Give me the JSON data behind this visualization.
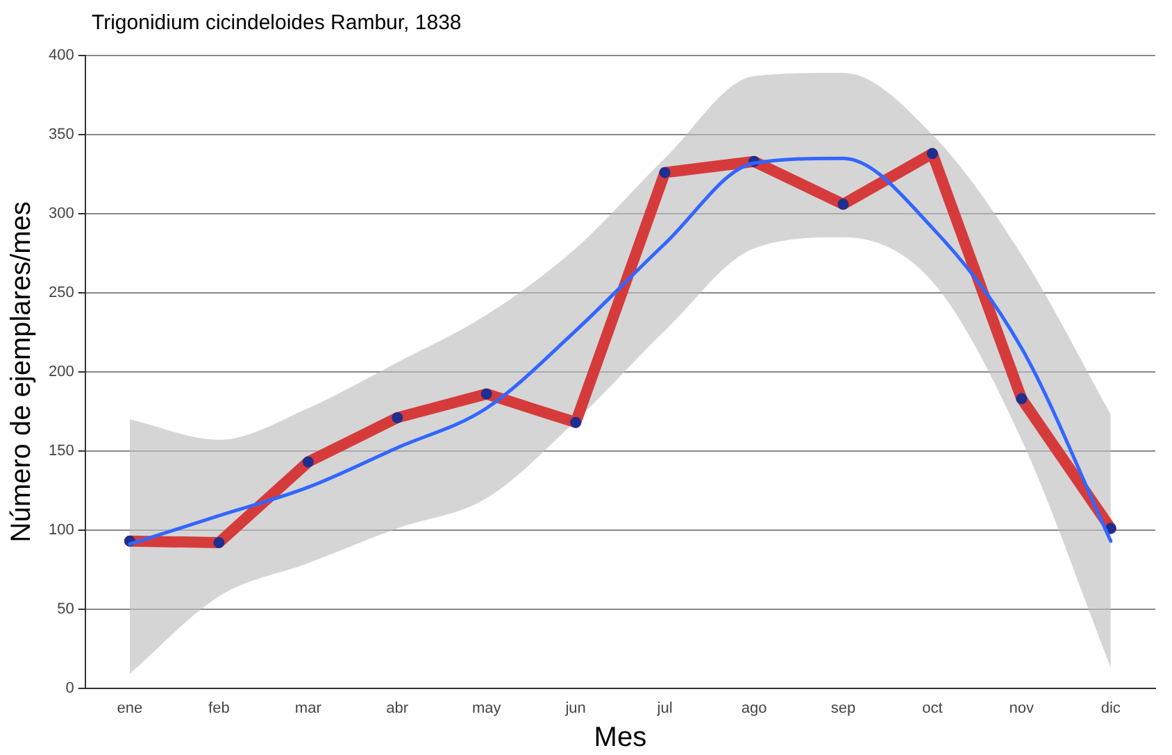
{
  "chart_data": {
    "type": "line",
    "title": "Trigonidium cicindeloides Rambur, 1838",
    "xlabel": "Mes",
    "ylabel": "Número de ejemplares/mes",
    "categories": [
      "ene",
      "feb",
      "mar",
      "abr",
      "may",
      "jun",
      "jul",
      "ago",
      "sep",
      "oct",
      "nov",
      "dic"
    ],
    "series": [
      {
        "type": "line",
        "color": "#d63b3b",
        "marker": "none",
        "values": [
          93,
          92,
          143,
          171,
          186,
          168,
          326,
          333,
          306,
          338,
          183,
          101
        ]
      },
      {
        "type": "scatter",
        "color": "#1f2f8f",
        "marker": "circle",
        "x": [
          "ene",
          "feb",
          "mar",
          "abr",
          "may",
          "jun",
          "jul",
          "ago",
          "sep",
          "oct",
          "nov",
          "dic"
        ],
        "values": [
          93,
          92,
          143,
          171,
          186,
          168,
          326,
          333,
          306,
          338,
          183,
          101
        ]
      },
      {
        "type": "line",
        "color": "#3366ff",
        "marker": "none",
        "values": [
          91,
          109,
          127,
          152,
          177,
          226,
          281,
          332,
          335,
          291,
          215,
          93
        ],
        "lower": [
          9,
          58,
          79,
          101,
          120,
          169,
          226,
          278,
          285,
          257,
          157,
          13
        ],
        "upper": [
          170,
          157,
          177,
          206,
          236,
          278,
          335,
          387,
          389,
          350,
          274,
          173
        ]
      }
    ],
    "ylim": [
      0,
      400
    ],
    "yticks": [
      0,
      50,
      100,
      150,
      200,
      250,
      300,
      350,
      400
    ],
    "grid": "y",
    "legend": false
  }
}
